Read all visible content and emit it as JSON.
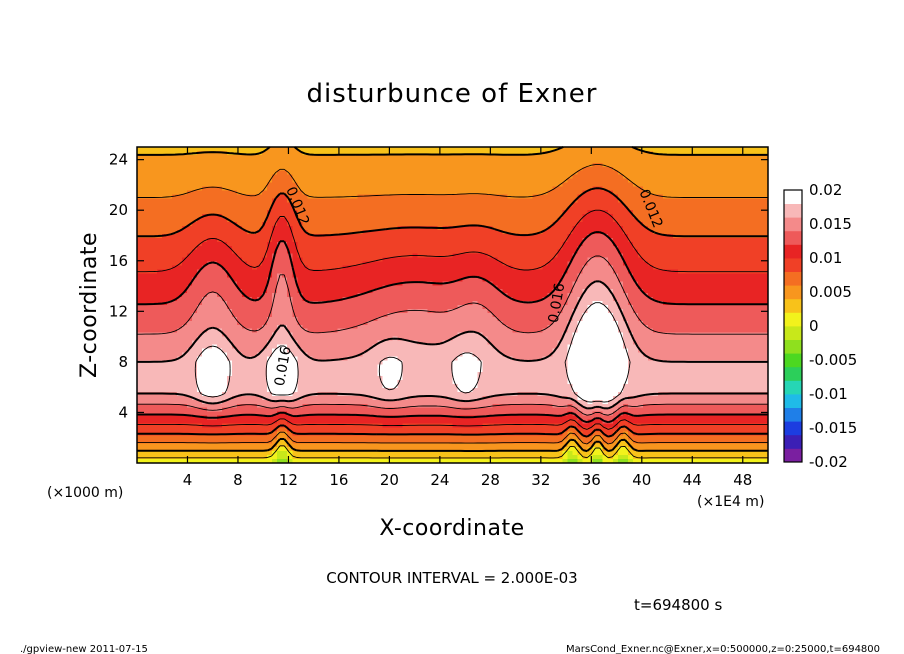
{
  "chart_data": {
    "type": "heatmap",
    "title": "disturbunce of Exner",
    "xlabel": "X-coordinate",
    "ylabel": "Z-coordinate",
    "x_unit_left": "(×1000 m)",
    "x_unit_right": "(×1E4 m)",
    "xlim": [
      0,
      50
    ],
    "ylim": [
      0,
      25
    ],
    "xticks": [
      "4",
      "8",
      "12",
      "16",
      "20",
      "24",
      "28",
      "32",
      "36",
      "40",
      "44",
      "48"
    ],
    "xtick_values": [
      4,
      8,
      12,
      16,
      20,
      24,
      28,
      32,
      36,
      40,
      44,
      48
    ],
    "yticks": [
      "4",
      "8",
      "12",
      "16",
      "20",
      "24"
    ],
    "ytick_values": [
      4,
      8,
      12,
      16,
      20,
      24
    ],
    "colorbar": {
      "labels": [
        "0.02",
        "0.015",
        "0.01",
        "0.005",
        "0",
        "-0.005",
        "-0.01",
        "-0.015",
        "-0.02"
      ],
      "levels": [
        0.02,
        0.015,
        0.01,
        0.005,
        0,
        -0.005,
        -0.01,
        -0.015,
        -0.02
      ],
      "colors": [
        "#7a1fa0",
        "#3b1fb5",
        "#1c3de0",
        "#1f7fe8",
        "#1fbbe8",
        "#26d6b5",
        "#2ccf5a",
        "#4cd821",
        "#8fe01e",
        "#c8e81a",
        "#f2f21c",
        "#f8c21a",
        "#f8961e",
        "#f46e22",
        "#f04026",
        "#e82424",
        "#ee5a5a",
        "#f48a8a",
        "#f8b8b8",
        "#ffffff"
      ]
    },
    "contour_labels": [
      {
        "text": "0.012",
        "x": 12.4,
        "y": 20.2
      },
      {
        "text": "0.016",
        "x": 11.9,
        "y": 7.6
      },
      {
        "text": "0.016",
        "x": 33.6,
        "y": 12.6
      },
      {
        "text": "0.012",
        "x": 40.4,
        "y": 20.0
      }
    ],
    "field_features": {
      "background_max": 0.016,
      "surface_min": 0.0,
      "top_value": 0.006,
      "peaks": [
        {
          "x": 6,
          "z": 7,
          "value": 0.02
        },
        {
          "x": 11.5,
          "z": 7,
          "value": 0.02
        },
        {
          "x": 20,
          "z": 7,
          "value": 0.018
        },
        {
          "x": 26,
          "z": 7,
          "value": 0.018
        },
        {
          "x": 36.5,
          "z": 8,
          "value": 0.022
        }
      ]
    }
  },
  "contour_interval": "CONTOUR INTERVAL = 2.000E-03",
  "time_label": "t=694800 s",
  "footer_left": "./gpview-new  2011-07-15",
  "footer_right": "MarsCond_Exner.nc@Exner,x=0:500000,z=0:25000,t=694800"
}
